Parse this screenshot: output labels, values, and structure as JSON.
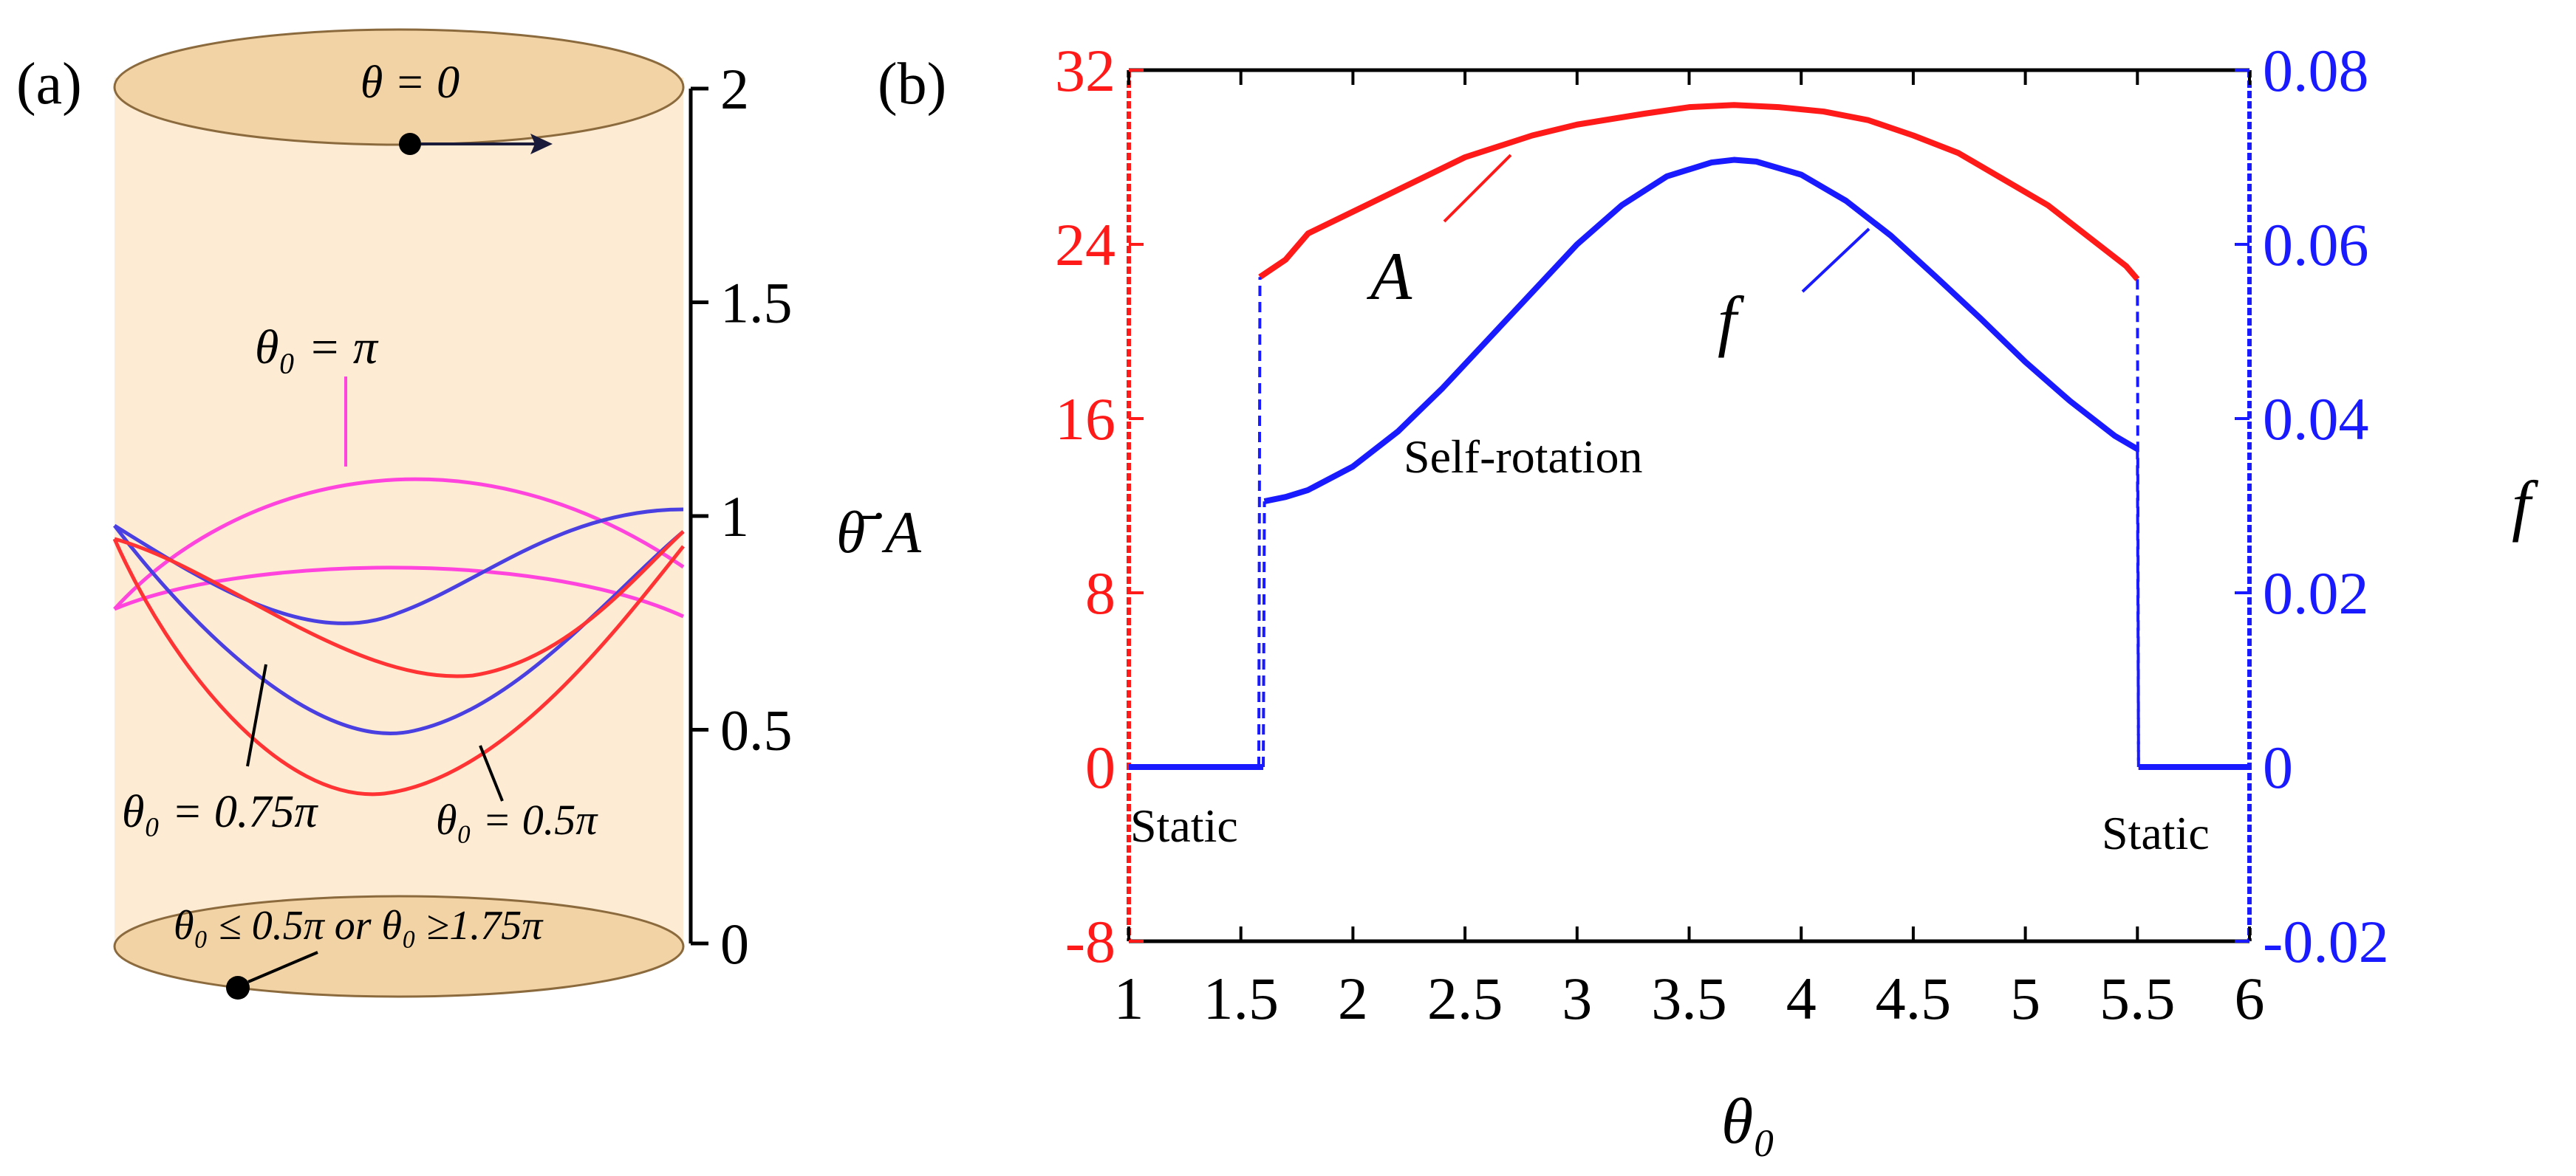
{
  "panel_a": {
    "label": "(a)",
    "top_cap_label": "θ = 0",
    "curve_labels": {
      "pi": "θ₀ = π",
      "p075": "θ₀ = 0.75π",
      "p05": "θ₀ = 0.5π"
    },
    "bottom_cap_label": "θ₀ ≤ 0.5π or θ₀ ≥1.75π",
    "axis_title_theta": "θ̄̇",
    "axis_title_A": "A",
    "ticks": [
      "2",
      "1.5",
      "1",
      "0.5",
      "0"
    ],
    "colors": {
      "cylinder_fill": "#fdebd3",
      "cap_fill": "#f2d3a6",
      "magenta": "#ff44dd",
      "red": "#ff3333",
      "blue": "#4a3fe0"
    }
  },
  "panel_b": {
    "label": "(b)",
    "curve_labels": {
      "A": "A",
      "f": "f"
    },
    "region_label": "Self-rotation",
    "static_left": "Static",
    "static_right": "Static",
    "xlabel": "θ₀",
    "left_ticks": [
      "32",
      "24",
      "16",
      "8",
      "0",
      "-8"
    ],
    "right_ticks": [
      "0.08",
      "0.06",
      "0.04",
      "0.02",
      "0",
      "-0.02"
    ],
    "right_axis_label": "f",
    "colors": {
      "A": "#ff1a1a",
      "f": "#1a1aff",
      "axis": "#000000"
    }
  },
  "chart_data": [
    {
      "type": "line",
      "panel": "(b)",
      "xlabel": "θ₀",
      "xlim": [
        1,
        6
      ],
      "x_ticks": [
        1,
        1.5,
        2,
        2.5,
        3,
        3.5,
        4,
        4.5,
        5,
        5.5,
        6
      ],
      "y_left_lim": [
        -8,
        32
      ],
      "y_right_lim": [
        -0.02,
        0.08
      ],
      "series": [
        {
          "name": "A",
          "axis": "left",
          "x": [
            1.0,
            1.58,
            1.585,
            1.7,
            1.8,
            2.0,
            2.2,
            2.5,
            2.8,
            3.0,
            3.3,
            3.5,
            3.7,
            3.9,
            4.1,
            4.3,
            4.5,
            4.7,
            4.9,
            5.1,
            5.3,
            5.45,
            5.5,
            5.505,
            6.0
          ],
          "y": [
            0,
            0,
            22.5,
            23.3,
            24.5,
            25.5,
            26.5,
            28.0,
            29.0,
            29.5,
            30.0,
            30.3,
            30.4,
            30.3,
            30.1,
            29.7,
            29.0,
            28.2,
            27.0,
            25.8,
            24.2,
            23.0,
            22.4,
            0,
            0
          ]
        },
        {
          "name": "f",
          "axis": "right",
          "x": [
            1.0,
            1.6,
            1.605,
            1.7,
            1.8,
            2.0,
            2.2,
            2.4,
            2.6,
            2.8,
            3.0,
            3.2,
            3.4,
            3.6,
            3.7,
            3.8,
            4.0,
            4.2,
            4.4,
            4.6,
            4.8,
            5.0,
            5.2,
            5.4,
            5.5,
            5.505,
            6.0
          ],
          "y": [
            0,
            0,
            0.0305,
            0.031,
            0.0318,
            0.0345,
            0.0385,
            0.0435,
            0.049,
            0.0545,
            0.06,
            0.0645,
            0.0678,
            0.0694,
            0.0697,
            0.0695,
            0.068,
            0.065,
            0.061,
            0.0563,
            0.0515,
            0.0465,
            0.042,
            0.038,
            0.0365,
            0,
            0
          ]
        }
      ]
    }
  ]
}
